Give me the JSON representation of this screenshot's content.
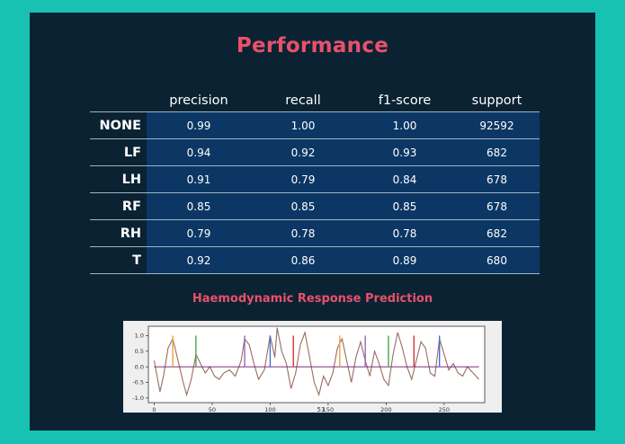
{
  "title": "Performance",
  "table": {
    "columns": [
      "precision",
      "recall",
      "f1-score",
      "support"
    ],
    "rows": [
      {
        "label": "NONE",
        "values": [
          "0.99",
          "1.00",
          "1.00",
          "92592"
        ]
      },
      {
        "label": "LF",
        "values": [
          "0.94",
          "0.92",
          "0.93",
          "682"
        ]
      },
      {
        "label": "LH",
        "values": [
          "0.91",
          "0.79",
          "0.84",
          "678"
        ]
      },
      {
        "label": "RF",
        "values": [
          "0.85",
          "0.85",
          "0.85",
          "678"
        ]
      },
      {
        "label": "RH",
        "values": [
          "0.79",
          "0.78",
          "0.78",
          "682"
        ]
      },
      {
        "label": "T",
        "values": [
          "0.92",
          "0.86",
          "0.89",
          "680"
        ]
      }
    ]
  },
  "subtitle": "Haemodynamic Response Prediction",
  "chart_data": {
    "type": "line",
    "xlabel": "51",
    "ylabel": "",
    "xlim": [
      -5,
      285
    ],
    "ylim": [
      -1.15,
      1.3
    ],
    "x_ticks": [
      "0",
      "50",
      "100",
      "150",
      "200",
      "250"
    ],
    "y_ticks": [
      "1.0",
      "0.5",
      "0.0",
      "-0.5",
      "-1.0"
    ],
    "grid": false,
    "series": [
      {
        "color": "#9a6b62",
        "x": [
          0,
          5,
          8,
          12,
          16,
          20,
          25,
          28,
          32,
          36,
          40,
          44,
          48,
          52,
          56,
          60,
          65,
          70,
          75,
          78,
          82,
          86,
          90,
          95,
          100,
          104,
          106,
          110,
          114,
          118,
          122,
          126,
          130,
          134,
          138,
          142,
          146,
          150,
          154,
          158,
          162,
          166,
          170,
          174,
          178,
          182,
          186,
          190,
          194,
          198,
          202,
          206,
          210,
          214,
          218,
          222,
          226,
          230,
          234,
          238,
          242,
          246,
          250,
          254,
          258,
          262,
          266,
          270,
          275,
          280
        ],
        "y": [
          0.2,
          -0.8,
          -0.3,
          0.6,
          0.9,
          0.3,
          -0.5,
          -0.9,
          -0.4,
          0.4,
          0.1,
          -0.2,
          0.0,
          -0.3,
          -0.4,
          -0.2,
          -0.1,
          -0.3,
          0.2,
          0.9,
          0.7,
          0.1,
          -0.4,
          -0.1,
          1.0,
          0.3,
          1.25,
          0.5,
          0.1,
          -0.7,
          -0.2,
          0.7,
          1.1,
          0.3,
          -0.5,
          -0.9,
          -0.3,
          -0.6,
          -0.2,
          0.6,
          0.9,
          0.2,
          -0.5,
          0.3,
          0.8,
          0.2,
          -0.3,
          0.5,
          0.1,
          -0.4,
          -0.6,
          0.4,
          1.1,
          0.6,
          0.0,
          -0.4,
          0.2,
          0.8,
          0.6,
          -0.2,
          -0.3,
          0.9,
          0.4,
          -0.1,
          0.1,
          -0.2,
          -0.3,
          0.0,
          -0.2,
          -0.4
        ]
      },
      {
        "color": "#7b2d7a",
        "x": [
          0,
          280
        ],
        "y": [
          0.0,
          0.0
        ]
      }
    ],
    "markers": [
      {
        "x": 16,
        "color": "#f0a040"
      },
      {
        "x": 36,
        "color": "#49a84a"
      },
      {
        "x": 78,
        "color": "#9467bd"
      },
      {
        "x": 100,
        "color": "#3f6fd8"
      },
      {
        "x": 120,
        "color": "#d0343a"
      },
      {
        "x": 160,
        "color": "#f0a040"
      },
      {
        "x": 182,
        "color": "#9467bd"
      },
      {
        "x": 202,
        "color": "#49a84a"
      },
      {
        "x": 224,
        "color": "#d0343a"
      },
      {
        "x": 246,
        "color": "#3f6fd8"
      }
    ]
  }
}
